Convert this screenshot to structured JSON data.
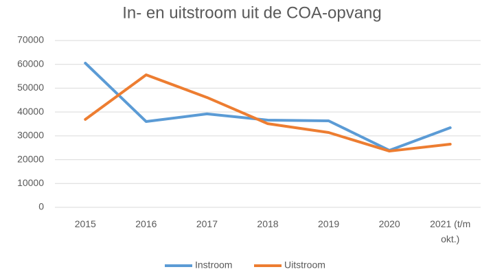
{
  "chart_data": {
    "type": "line",
    "title": "In- en uitstroom uit de COA-opvang",
    "categories": [
      "2015",
      "2016",
      "2017",
      "2018",
      "2019",
      "2020",
      "2021 (t/m okt.)"
    ],
    "series": [
      {
        "name": "Instroom",
        "color": "#5b9bd5",
        "values": [
          60500,
          36000,
          39200,
          36600,
          36300,
          23900,
          33400
        ]
      },
      {
        "name": "Uitstroom",
        "color": "#ed7d31",
        "values": [
          36900,
          55600,
          46100,
          35100,
          31400,
          23600,
          26500
        ]
      }
    ],
    "ylim": [
      0,
      70000
    ],
    "yticks": [
      0,
      10000,
      20000,
      30000,
      40000,
      50000,
      60000,
      70000
    ],
    "grid": true,
    "legend": "bottom"
  }
}
